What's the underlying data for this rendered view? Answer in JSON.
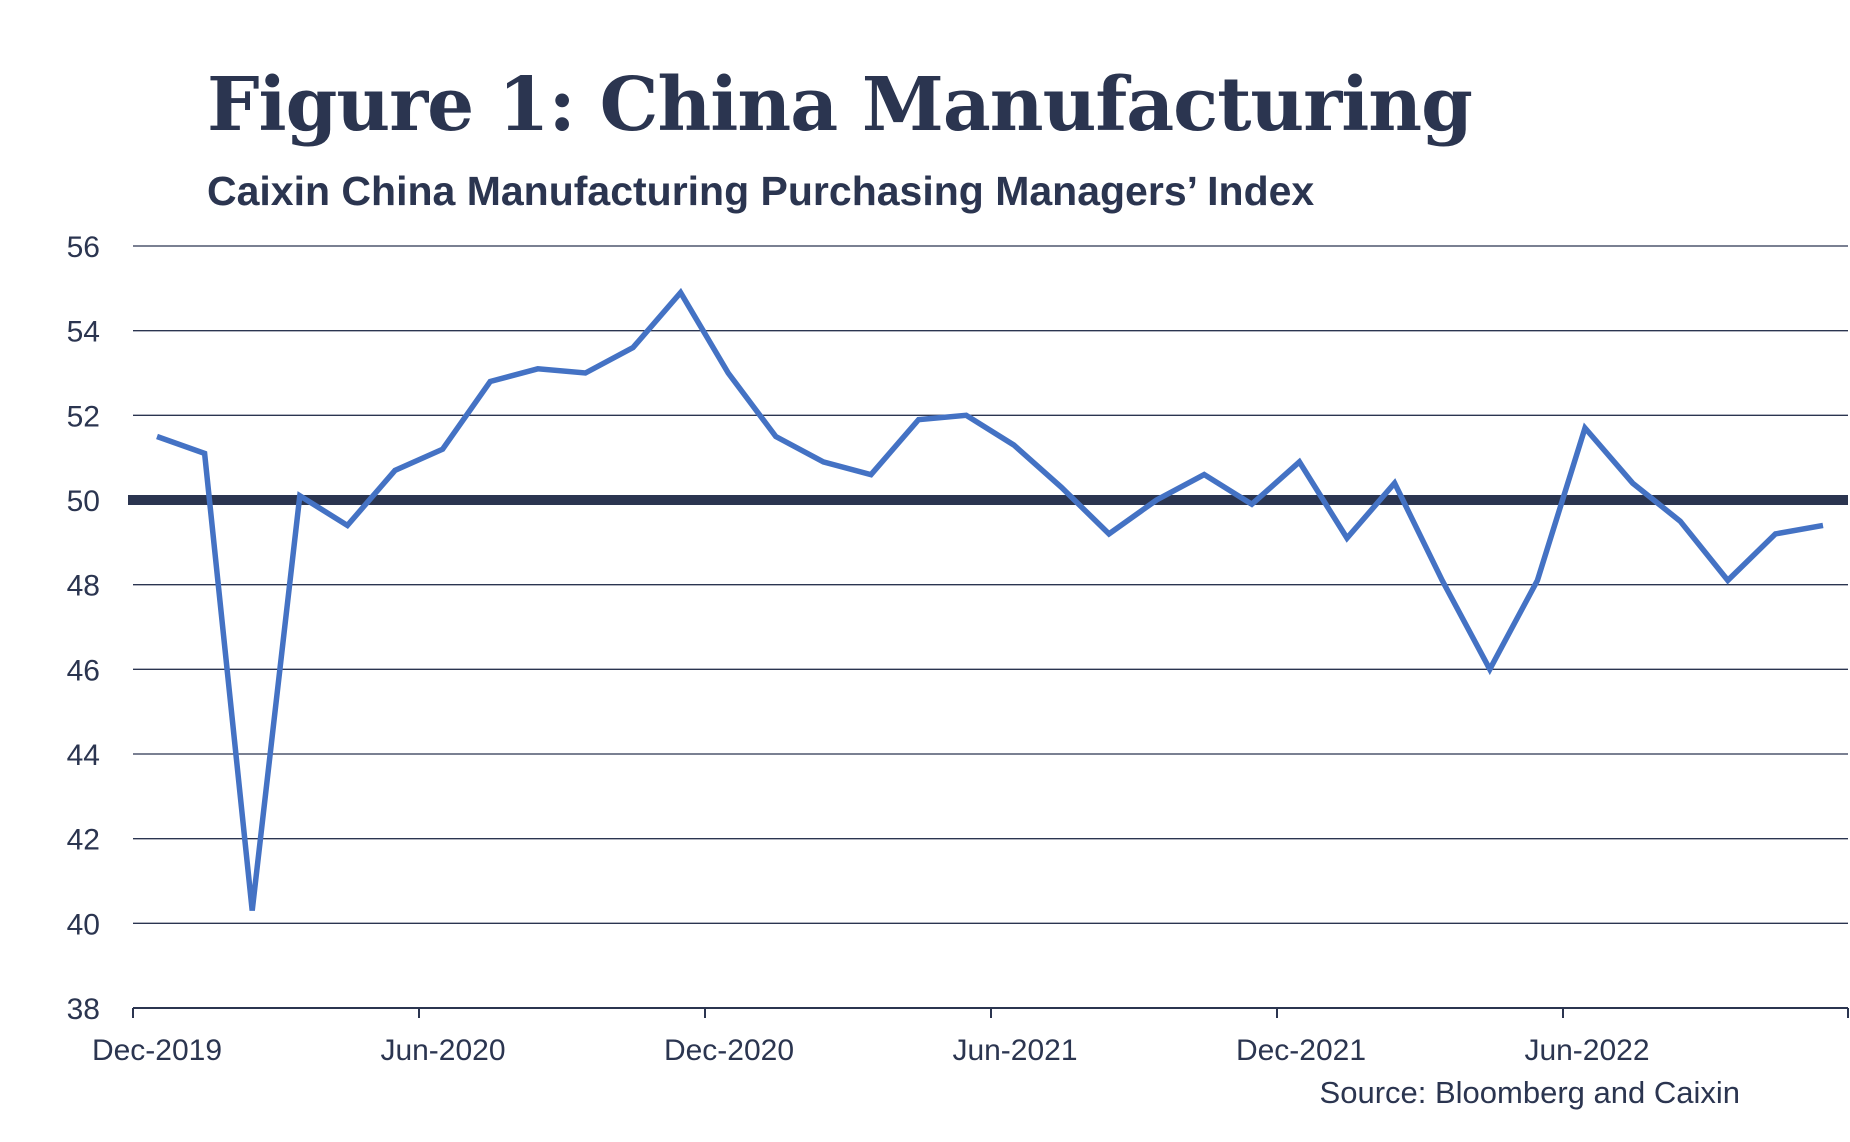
{
  "title": "Figure 1: China Manufacturing",
  "subtitle": "Caixin China Manufacturing Purchasing Managers’ Index",
  "source": "Source: Bloomberg and Caixin",
  "colors": {
    "line": "#4472c4",
    "reference_line": "#2b3550",
    "text": "#2b3550",
    "grid": "#2b3550"
  },
  "chart_data": {
    "type": "line",
    "title": "Figure 1: China Manufacturing",
    "subtitle": "Caixin China Manufacturing Purchasing Managers’ Index",
    "xlabel": "",
    "ylabel": "",
    "ylim": [
      38,
      56
    ],
    "yticks": [
      38,
      40,
      42,
      44,
      46,
      48,
      50,
      52,
      54,
      56
    ],
    "xtick_labels": [
      "Dec-2019",
      "Jun-2020",
      "Dec-2020",
      "Jun-2021",
      "Dec-2021",
      "Jun-2022"
    ],
    "grid": "horizontal",
    "reference_line": 50,
    "x": [
      "Dec-2019",
      "Jan-2020",
      "Feb-2020",
      "Mar-2020",
      "Apr-2020",
      "May-2020",
      "Jun-2020",
      "Jul-2020",
      "Aug-2020",
      "Sep-2020",
      "Oct-2020",
      "Nov-2020",
      "Dec-2020",
      "Jan-2021",
      "Feb-2021",
      "Mar-2021",
      "Apr-2021",
      "May-2021",
      "Jun-2021",
      "Jul-2021",
      "Aug-2021",
      "Sep-2021",
      "Oct-2021",
      "Nov-2021",
      "Dec-2021",
      "Jan-2022",
      "Feb-2022",
      "Mar-2022",
      "Apr-2022",
      "May-2022",
      "Jun-2022",
      "Jul-2022",
      "Aug-2022",
      "Sep-2022",
      "Oct-2022",
      "Nov-2022"
    ],
    "series": [
      {
        "values": [
          51.5,
          51.1,
          40.3,
          50.1,
          49.4,
          50.7,
          51.2,
          52.8,
          53.1,
          53.0,
          53.6,
          54.9,
          53.0,
          51.5,
          50.9,
          50.6,
          51.9,
          52.0,
          51.3,
          50.3,
          49.2,
          50.0,
          50.6,
          49.9,
          50.9,
          49.1,
          50.4,
          48.1,
          46.0,
          48.1,
          51.7,
          50.4,
          49.5,
          48.1,
          49.2,
          49.4
        ]
      }
    ]
  }
}
